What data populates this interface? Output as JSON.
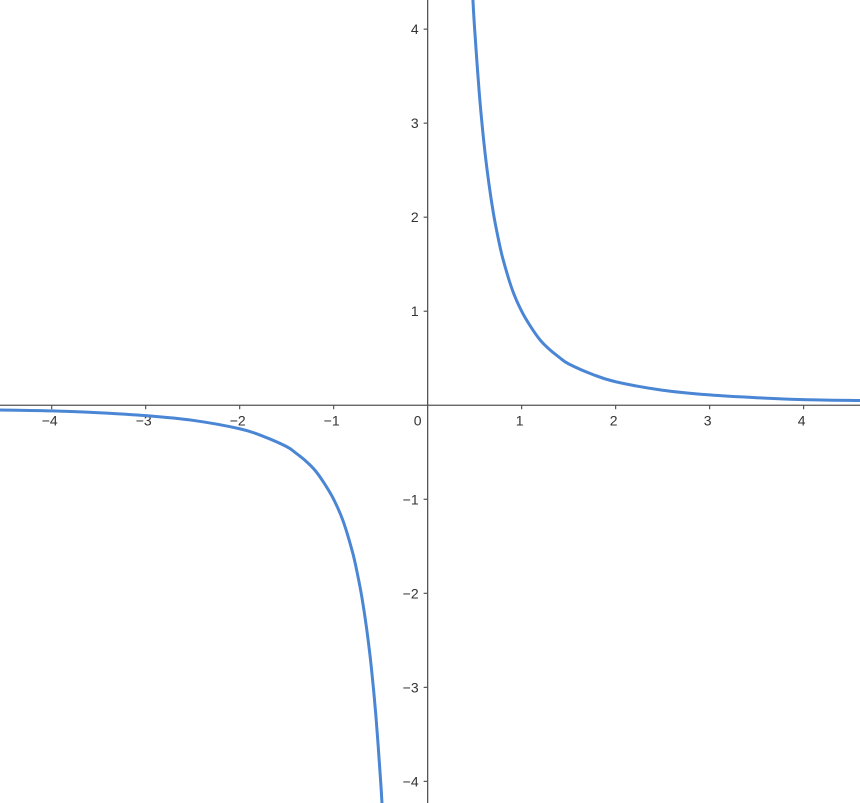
{
  "chart_data": {
    "type": "line",
    "title": "",
    "xlabel": "",
    "ylabel": "",
    "xlim": [
      -4.55,
      4.6
    ],
    "ylim": [
      -4.23,
      4.31
    ],
    "grid": false,
    "x_ticks": [
      -4,
      -3,
      -2,
      -1,
      0,
      1,
      2,
      3,
      4
    ],
    "x_tick_labels": [
      "−4",
      "−3",
      "−2",
      "−1",
      "0",
      "1",
      "2",
      "3",
      "4"
    ],
    "y_ticks": [
      4,
      3,
      2,
      1,
      -1,
      -2,
      -3,
      -4
    ],
    "y_tick_labels": [
      "4",
      "3",
      "2",
      "1",
      "−1",
      "−2",
      "−3",
      "−4"
    ],
    "line_color": "#4a86d4",
    "axis_color": "#555555",
    "series": [
      {
        "x": [
          0.48,
          0.5,
          0.55,
          0.6,
          0.65,
          0.7,
          0.75,
          0.8,
          0.9,
          1,
          1.1,
          1.2,
          1.3,
          1.4,
          1.5,
          1.75,
          2,
          2.5,
          3,
          3.5,
          4,
          4.6
        ],
        "y": [
          4.34,
          4,
          3.31,
          2.78,
          2.37,
          2.04,
          1.78,
          1.56,
          1.23,
          1,
          0.83,
          0.69,
          0.59,
          0.51,
          0.44,
          0.33,
          0.25,
          0.16,
          0.11,
          0.08,
          0.06,
          0.05
        ]
      },
      {
        "x": [
          -4.55,
          -4,
          -3.5,
          -3,
          -2.5,
          -2,
          -1.75,
          -1.5,
          -1.4,
          -1.3,
          -1.2,
          -1.1,
          -1,
          -0.9,
          -0.8,
          -0.75,
          -0.7,
          -0.65,
          -0.6,
          -0.55,
          -0.5,
          -0.485
        ],
        "y": [
          -0.05,
          -0.06,
          -0.08,
          -0.11,
          -0.16,
          -0.25,
          -0.33,
          -0.44,
          -0.51,
          -0.59,
          -0.69,
          -0.83,
          -1,
          -1.23,
          -1.56,
          -1.78,
          -2.04,
          -2.37,
          -2.78,
          -3.31,
          -4,
          -4.25
        ]
      }
    ]
  }
}
